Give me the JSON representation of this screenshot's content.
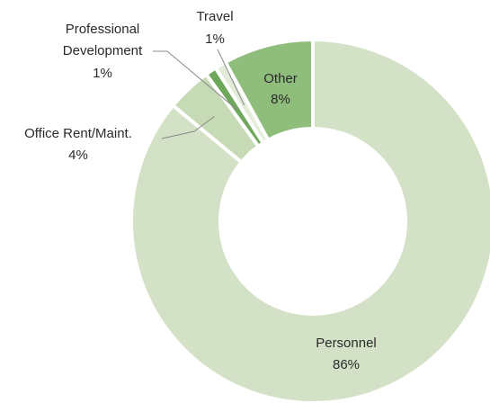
{
  "chart_data": {
    "type": "pie",
    "variant": "donut",
    "slices": [
      {
        "label": "Personnel",
        "value": 86,
        "percent_label": "86%",
        "color": "#d3e2c6"
      },
      {
        "label": "Office Rent/Maint.",
        "value": 4,
        "percent_label": "4%",
        "color": "#c5dab5"
      },
      {
        "label": "Professional Development",
        "label_lines": [
          "Professional",
          "Development"
        ],
        "value": 1,
        "percent_label": "1%",
        "color": "#6fa85b"
      },
      {
        "label": "Travel",
        "value": 1,
        "percent_label": "1%",
        "color": "#e2ecd9"
      },
      {
        "label": "Other",
        "value": 8,
        "percent_label": "8%",
        "color": "#8fbd7c"
      }
    ]
  }
}
